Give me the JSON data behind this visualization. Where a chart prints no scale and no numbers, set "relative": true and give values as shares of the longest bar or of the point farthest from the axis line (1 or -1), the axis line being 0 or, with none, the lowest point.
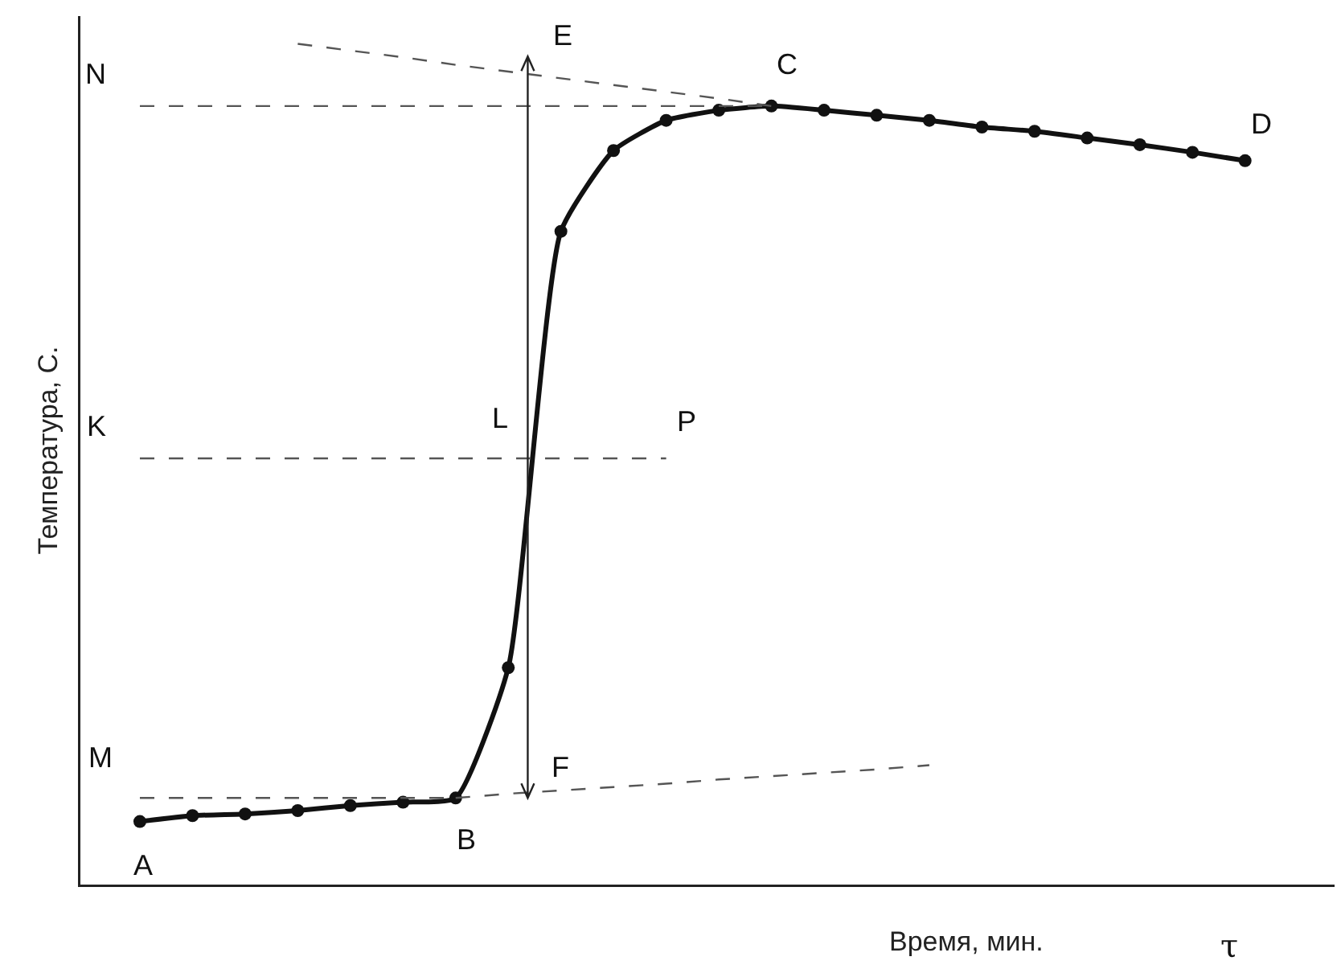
{
  "chart_data": {
    "type": "line",
    "relative": true,
    "ylabel": "Температура, С.",
    "xlabel": "Время, мин.",
    "grid": false,
    "categories": [
      null,
      null,
      null,
      null,
      null,
      null,
      null,
      null,
      null,
      null,
      null,
      null,
      null,
      null,
      null,
      null,
      null,
      null,
      null,
      null,
      null,
      null
    ],
    "series": [
      {
        "color": "#111111",
        "marker": "circle",
        "line_style": "solid",
        "values": [
          0.075,
          0.082,
          0.084,
          0.088,
          0.094,
          0.098,
          0.103,
          0.258,
          0.777,
          0.873,
          0.909,
          0.921,
          0.926,
          0.921,
          0.915,
          0.909,
          0.901,
          0.896,
          0.888,
          0.88,
          0.871,
          0.861
        ]
      },
      {
        "color": "#555555",
        "marker": "none",
        "line_style": "dashed",
        "values": [
          0.926,
          0.926,
          0.926,
          0.926,
          0.926,
          0.926,
          0.926,
          0.926,
          0.926,
          0.926,
          0.926,
          0.926,
          0.926,
          null,
          null,
          null,
          null,
          null,
          null,
          null,
          null,
          null
        ]
      },
      {
        "color": "#555555",
        "marker": "none",
        "line_style": "dashed",
        "values": [
          0.507,
          0.507,
          0.507,
          0.507,
          0.507,
          0.507,
          0.507,
          0.507,
          0.507,
          0.507,
          0.507,
          null,
          null,
          null,
          null,
          null,
          null,
          null,
          null,
          null,
          null,
          null
        ]
      },
      {
        "color": "#555555",
        "marker": "none",
        "line_style": "dashed",
        "values": [
          0.103,
          0.103,
          0.103,
          0.103,
          0.103,
          0.103,
          0.103,
          null,
          null,
          null,
          null,
          null,
          null,
          null,
          null,
          null,
          null,
          null,
          null,
          null,
          null,
          null
        ]
      },
      {
        "color": "#555555",
        "marker": "none",
        "line_style": "dashed",
        "values": [
          null,
          null,
          null,
          null,
          null,
          null,
          0.103,
          0.108,
          0.112,
          0.116,
          0.12,
          0.125,
          0.129,
          0.133,
          0.137,
          0.142,
          null,
          null,
          null,
          null,
          null,
          null
        ]
      },
      {
        "color": "#555555",
        "marker": "none",
        "line_style": "dashed",
        "values": [
          null,
          null,
          null,
          1,
          0.992,
          0.984,
          0.975,
          0.967,
          0.959,
          0.951,
          0.943,
          0.935,
          0.926,
          null,
          null,
          null,
          null,
          null,
          null,
          null,
          null,
          null
        ]
      }
    ],
    "annotations": [
      "N",
      "E",
      "C",
      "D",
      "K",
      "L",
      "P",
      "M",
      "F",
      "A",
      "B",
      "τ"
    ]
  }
}
